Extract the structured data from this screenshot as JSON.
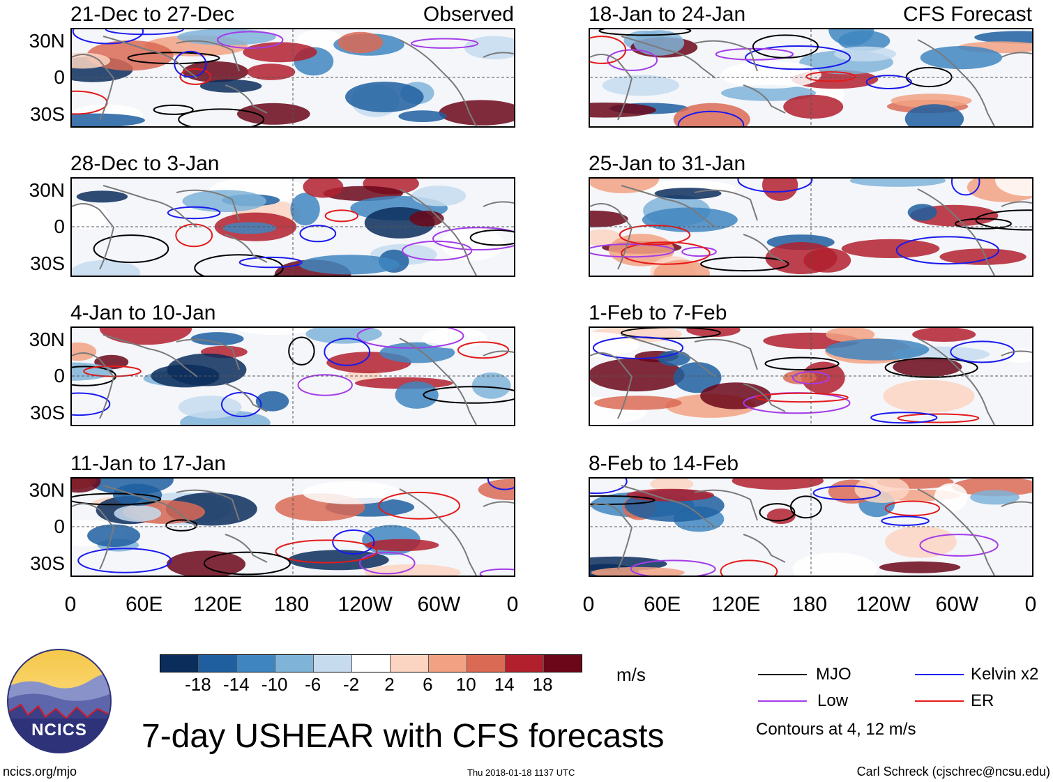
{
  "panels": [
    {
      "title": "21-Dec to 27-Dec",
      "tag": "Observed"
    },
    {
      "title": "28-Dec to 3-Jan",
      "tag": ""
    },
    {
      "title": "4-Jan to 10-Jan",
      "tag": ""
    },
    {
      "title": "11-Jan to 17-Jan",
      "tag": ""
    },
    {
      "title": "18-Jan to 24-Jan",
      "tag": "CFS Forecast"
    },
    {
      "title": "25-Jan to 31-Jan",
      "tag": ""
    },
    {
      "title": "1-Feb to 7-Feb",
      "tag": ""
    },
    {
      "title": "8-Feb to 14-Feb",
      "tag": ""
    }
  ],
  "lat_labels": [
    "30N",
    "0",
    "30S"
  ],
  "lon_labels": [
    "0",
    "60E",
    "120E",
    "180",
    "120W",
    "60W",
    "0"
  ],
  "colorbar": {
    "unit": "m/s",
    "ticks": [
      "-18",
      "-14",
      "-10",
      "-6",
      "-2",
      "2",
      "6",
      "10",
      "14",
      "18"
    ],
    "colors": [
      "#0b2d5c",
      "#1f5fa0",
      "#3f86c0",
      "#7fb3d8",
      "#c6dcee",
      "#ffffff",
      "#fcd5c2",
      "#f2a282",
      "#db6a55",
      "#b2202e",
      "#6b0719"
    ]
  },
  "legend": {
    "items": [
      {
        "label": "MJO",
        "color": "#000000"
      },
      {
        "label": "Kelvin x2",
        "color": "#1a1aee"
      },
      {
        "label": "Low",
        "color": "#a43ce8"
      },
      {
        "label": "ER",
        "color": "#e41a1a"
      }
    ],
    "note": "Contours at 4, 12 m/s"
  },
  "logo": {
    "text": "NCICS"
  },
  "main_title": "7-day USHEAR with CFS forecasts",
  "footer": {
    "url": "ncics.org/mjo",
    "timestamp": "Thu 2018-01-18 1137 UTC",
    "credit": "Carl Schreck (cjschrec@ncsu.edu)"
  }
}
